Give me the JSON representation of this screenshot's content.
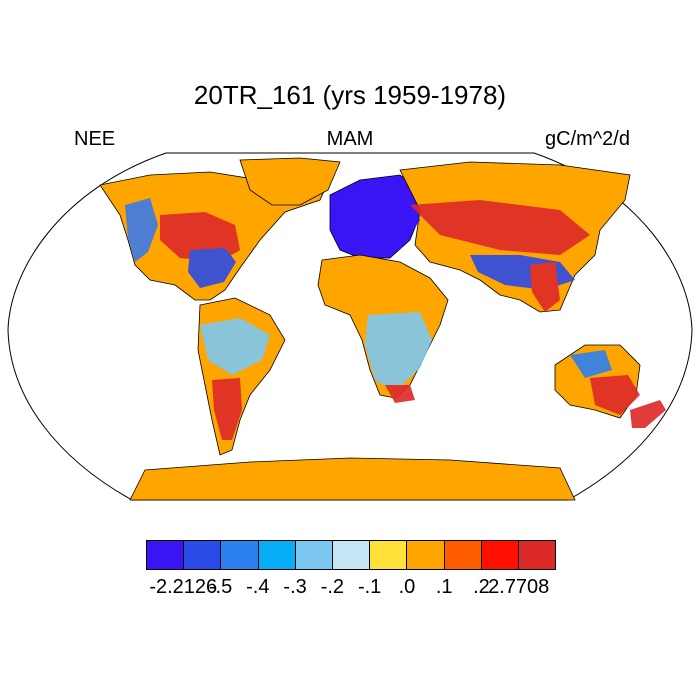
{
  "header": {
    "title": "20TR_161 (yrs 1959-1978)",
    "left": "NEE",
    "center": "MAM",
    "right": "gC/m^2/d"
  },
  "map": {
    "projection": "Robinson",
    "ocean_color": "#ffffff",
    "outline_color": "#000000",
    "regions": [
      {
        "name": "north-america-region",
        "label": "North America",
        "color": "#ffa500"
      },
      {
        "name": "south-america-region",
        "label": "South America",
        "color": "#ffa500"
      },
      {
        "name": "europe-region",
        "label": "Europe",
        "color": "#3a14f5"
      },
      {
        "name": "asia-region",
        "label": "Asia",
        "color": "#ffa500"
      },
      {
        "name": "africa-region",
        "label": "Africa",
        "color": "#ffa500"
      },
      {
        "name": "australia-region",
        "label": "Australia",
        "color": "#ffa500"
      },
      {
        "name": "antarctica-region",
        "label": "Antarctica",
        "color": "#ffa500"
      },
      {
        "name": "greenland-region",
        "label": "Greenland",
        "color": "#ffa500"
      }
    ]
  },
  "colorbar": {
    "colors": [
      "#3a14f5",
      "#2b4be8",
      "#2c80f0",
      "#07adf5",
      "#7dc8f0",
      "#c6e6f8",
      "#ffe13a",
      "#ffa500",
      "#ff5c00",
      "#ff0f00",
      "#dd2828"
    ],
    "labels": [
      "-2.2126",
      "-.5",
      "-.4",
      "-.3",
      "-.2",
      "-.1",
      ".0",
      ".1",
      ".2",
      "2.7708"
    ]
  }
}
